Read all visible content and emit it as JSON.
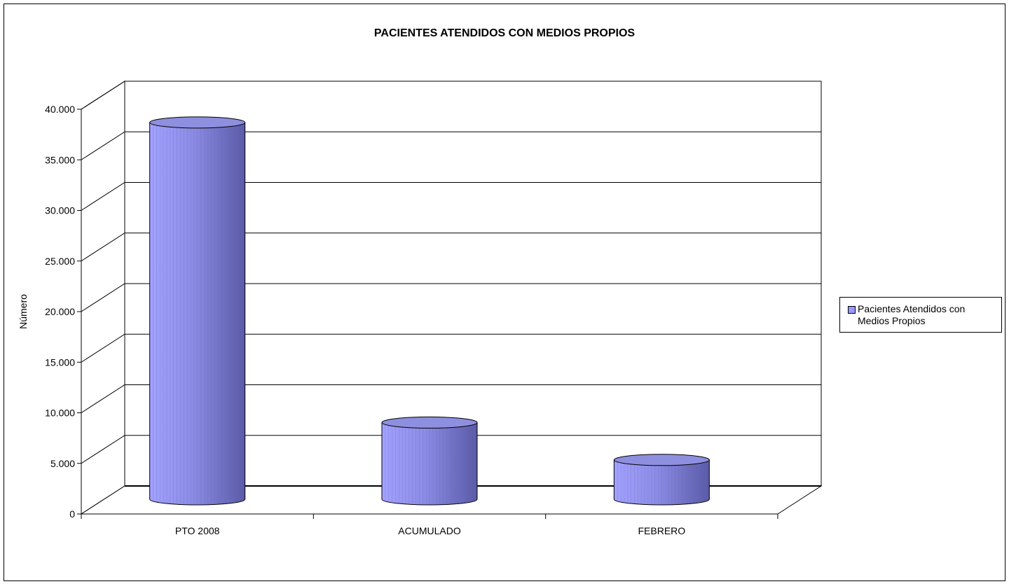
{
  "chart_data": {
    "type": "bar",
    "style": "3d-cylinder",
    "title": "PACIENTES ATENDIDOS CON MEDIOS PROPIOS",
    "xlabel": "",
    "ylabel": "Número",
    "categories": [
      "PTO 2008",
      "ACUMULADO",
      "FEBRERO"
    ],
    "series": [
      {
        "name": "Pacientes Atendidos con Medios Propios",
        "values": [
          38300,
          7800,
          4000
        ],
        "color": "#9999ff"
      }
    ],
    "ylim": [
      0,
      40000
    ],
    "yticks": [
      0,
      5000,
      10000,
      15000,
      20000,
      25000,
      30000,
      35000,
      40000
    ],
    "ytick_labels": [
      "0",
      "5.000",
      "10.000",
      "15.000",
      "20.000",
      "25.000",
      "30.000",
      "35.000",
      "40.000"
    ],
    "grid": true,
    "legend_position": "right"
  }
}
